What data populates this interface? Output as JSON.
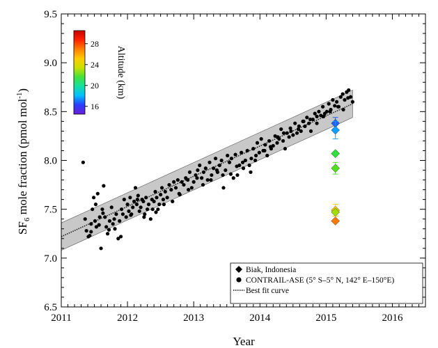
{
  "chart_data": {
    "type": "scatter",
    "xlabel": "Year",
    "ylabel": {
      "pre": "SF",
      "sub": "6",
      "mid": " mole fraction (pmol mol",
      "sup": "-1",
      "post": ")"
    },
    "xlim": [
      2011,
      2016.5
    ],
    "ylim": [
      6.5,
      9.5
    ],
    "x_ticks": [
      2011,
      2012,
      2013,
      2014,
      2015,
      2016
    ],
    "x_tick_labels": [
      "2011",
      "2012",
      "2013",
      "2014",
      "2015",
      "2016"
    ],
    "y_ticks": [
      6.5,
      7.0,
      7.5,
      8.0,
      8.5,
      9.0,
      9.5
    ],
    "y_tick_labels": [
      "6.5",
      "7.0",
      "7.5",
      "8.0",
      "8.5",
      "9.0",
      "9.5"
    ],
    "grid": false,
    "fit": {
      "x": [
        2011.0,
        2015.4
      ],
      "y": [
        7.22,
        8.58
      ],
      "band_halfwidth": 0.14,
      "band_color": "#c8c8c8"
    },
    "series": [
      {
        "name": "CONTRAIL-ASE (5° S–5° N, 142° E–150°E)",
        "marker": "circle",
        "color": "#000000",
        "x": [
          2011.33,
          2011.36,
          2011.38,
          2011.41,
          2011.43,
          2011.45,
          2011.47,
          2011.49,
          2011.51,
          2011.53,
          2011.55,
          2011.58,
          2011.6,
          2011.62,
          2011.64,
          2011.66,
          2011.68,
          2011.7,
          2011.73,
          2011.76,
          2011.78,
          2011.81,
          2011.83,
          2011.86,
          2011.88,
          2011.91,
          2011.93,
          2011.95,
          2011.98,
          2012.0,
          2012.02,
          2012.04,
          2012.06,
          2012.08,
          2012.1,
          2012.12,
          2012.14,
          2012.16,
          2012.18,
          2012.2,
          2012.22,
          2012.24,
          2012.26,
          2012.28,
          2012.3,
          2012.32,
          2012.35,
          2012.37,
          2012.4,
          2012.42,
          2012.44,
          2012.46,
          2012.48,
          2012.5,
          2012.52,
          2012.54,
          2012.57,
          2012.6,
          2012.63,
          2012.66,
          2012.7,
          2012.73,
          2012.76,
          2012.79,
          2012.82,
          2012.85,
          2012.88,
          2012.91,
          2012.94,
          2012.97,
          2013.0,
          2013.03,
          2013.06,
          2013.09,
          2013.12,
          2013.15,
          2013.18,
          2013.21,
          2013.24,
          2013.27,
          2013.3,
          2013.33,
          2013.36,
          2013.39,
          2013.42,
          2013.45,
          2013.48,
          2013.51,
          2013.54,
          2013.57,
          2013.6,
          2013.63,
          2013.66,
          2013.69,
          2013.72,
          2013.75,
          2013.78,
          2013.81,
          2013.84,
          2013.87,
          2013.9,
          2013.93,
          2013.96,
          2013.99,
          2014.02,
          2014.05,
          2014.08,
          2014.11,
          2014.14,
          2014.17,
          2014.2,
          2014.23,
          2014.26,
          2014.29,
          2014.32,
          2014.35,
          2014.38,
          2014.41,
          2014.44,
          2014.47,
          2014.5,
          2014.53,
          2014.56,
          2014.59,
          2014.62,
          2014.65,
          2014.68,
          2014.71,
          2014.74,
          2014.77,
          2014.8,
          2014.83,
          2014.86,
          2014.89,
          2014.92,
          2014.95,
          2014.98,
          2015.01,
          2015.04,
          2015.07,
          2015.1,
          2015.13,
          2015.16,
          2015.19,
          2015.22,
          2015.25,
          2015.28,
          2015.31,
          2015.34,
          2015.37,
          2015.4,
          2011.45,
          2011.52,
          2011.57,
          2011.63,
          2011.72,
          2011.8,
          2011.9,
          2012.05,
          2012.15,
          2012.25,
          2012.38,
          2012.43,
          2012.55,
          2012.68,
          2012.78,
          2012.92,
          2013.05,
          2013.14,
          2013.26,
          2013.35,
          2013.44,
          2013.56,
          2013.65,
          2013.74,
          2013.86,
          2013.94,
          2014.07,
          2014.16,
          2014.27,
          2014.36,
          2014.46,
          2014.58,
          2014.66,
          2014.76,
          2014.86,
          2014.96,
          2015.06,
          2015.18,
          2015.26,
          2015.33
        ],
        "y": [
          7.98,
          7.4,
          7.28,
          7.22,
          7.23,
          7.35,
          7.5,
          7.62,
          7.38,
          7.32,
          7.66,
          7.42,
          7.1,
          7.5,
          7.74,
          7.42,
          7.32,
          7.25,
          7.38,
          7.52,
          7.35,
          7.3,
          7.45,
          7.2,
          7.38,
          7.5,
          7.45,
          7.6,
          7.42,
          7.55,
          7.48,
          7.62,
          7.45,
          7.52,
          7.58,
          7.72,
          7.55,
          7.64,
          7.48,
          7.52,
          7.6,
          7.58,
          7.45,
          7.62,
          7.5,
          7.55,
          7.4,
          7.6,
          7.58,
          7.68,
          7.62,
          7.5,
          7.55,
          7.65,
          7.72,
          7.6,
          7.68,
          7.62,
          7.75,
          7.7,
          7.78,
          7.72,
          7.8,
          7.65,
          7.78,
          7.75,
          7.82,
          7.8,
          7.88,
          7.72,
          7.78,
          7.85,
          7.9,
          7.95,
          7.82,
          7.88,
          7.92,
          7.8,
          7.98,
          7.85,
          7.92,
          8.02,
          7.88,
          7.95,
          8.0,
          7.72,
          7.9,
          8.05,
          7.98,
          8.02,
          7.82,
          8.06,
          7.85,
          7.95,
          8.08,
          7.92,
          8.0,
          8.1,
          7.95,
          8.02,
          8.12,
          8.0,
          8.18,
          8.08,
          8.22,
          8.1,
          8.16,
          8.05,
          8.2,
          8.12,
          8.15,
          8.25,
          8.18,
          8.22,
          8.32,
          8.2,
          8.12,
          8.28,
          8.24,
          8.3,
          8.26,
          8.38,
          8.28,
          8.35,
          8.3,
          8.4,
          8.35,
          8.44,
          8.38,
          8.3,
          8.42,
          8.48,
          8.45,
          8.5,
          8.46,
          8.55,
          8.48,
          8.5,
          8.58,
          8.52,
          8.62,
          8.56,
          8.6,
          8.55,
          8.65,
          8.68,
          8.62,
          8.7,
          8.72,
          8.65,
          8.6,
          7.27,
          7.55,
          7.34,
          7.46,
          7.29,
          7.4,
          7.22,
          7.44,
          7.6,
          7.42,
          7.5,
          7.47,
          7.55,
          7.58,
          7.66,
          7.7,
          7.82,
          7.75,
          7.8,
          7.9,
          7.85,
          7.86,
          7.94,
          7.98,
          7.88,
          8.05,
          8.1,
          8.14,
          8.24,
          8.28,
          8.33,
          8.32,
          8.4,
          8.42,
          8.38,
          8.45,
          8.5,
          8.55,
          8.52,
          8.64
        ]
      },
      {
        "name": "Biak, Indonesia",
        "marker": "diamond",
        "x": [
          2015.14,
          2015.14,
          2015.14,
          2015.14,
          2015.14,
          2015.14,
          2015.14
        ],
        "y": [
          8.38,
          8.31,
          8.07,
          7.92,
          7.49,
          7.47,
          7.38
        ],
        "err": [
          0.06,
          0.09,
          0.0,
          0.06,
          0.06,
          0.0,
          0.0
        ],
        "colors": [
          "#2060ff",
          "#10a0ff",
          "#30e040",
          "#50e020",
          "#ffd000",
          "#a0e000",
          "#ff7a00"
        ]
      }
    ],
    "fit_label": "Best fit curve",
    "colorbar": {
      "label": "Altitude (km)",
      "ticks": [
        16,
        20,
        24,
        28
      ],
      "tick_labels": [
        "16",
        "20",
        "24",
        "28"
      ],
      "range": [
        14.5,
        30.5
      ],
      "stops": [
        "#6b1fd9",
        "#2a3cff",
        "#00bfff",
        "#14e0a0",
        "#46e03c",
        "#c8e000",
        "#ffcc00",
        "#ff8000",
        "#ff2000",
        "#c80000"
      ]
    }
  }
}
